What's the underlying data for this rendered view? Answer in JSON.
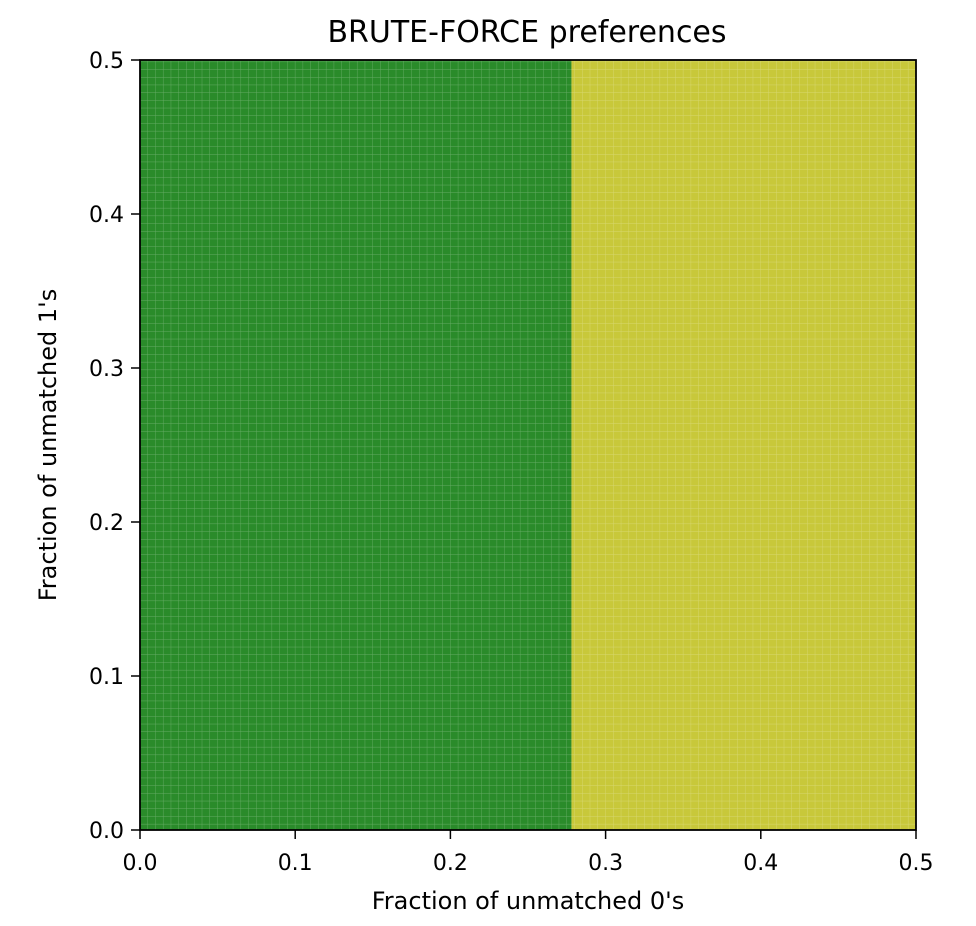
{
  "chart_data": {
    "type": "heatmap",
    "title": "BRUTE-FORCE preferences",
    "xlabel": "Fraction of unmatched 0's",
    "ylabel": "Fraction of unmatched 1's",
    "xlim": [
      0.0,
      0.5
    ],
    "ylim": [
      0.0,
      0.5
    ],
    "xticks": [
      "0.0",
      "0.1",
      "0.2",
      "0.3",
      "0.4",
      "0.5"
    ],
    "yticks": [
      "0.0",
      "0.1",
      "0.2",
      "0.3",
      "0.4",
      "0.5"
    ],
    "grid": true,
    "regions": [
      {
        "x_range": [
          0.0,
          0.278
        ],
        "y_range": [
          0.0,
          0.5
        ],
        "color": "#2a8b2a"
      },
      {
        "x_range": [
          0.278,
          0.5
        ],
        "y_range": [
          0.0,
          0.5
        ],
        "color": "#c8c83a"
      }
    ],
    "colors": {
      "green": "#2a8b2a",
      "yellow": "#c8c83a",
      "gridline": "#ffffff"
    }
  }
}
